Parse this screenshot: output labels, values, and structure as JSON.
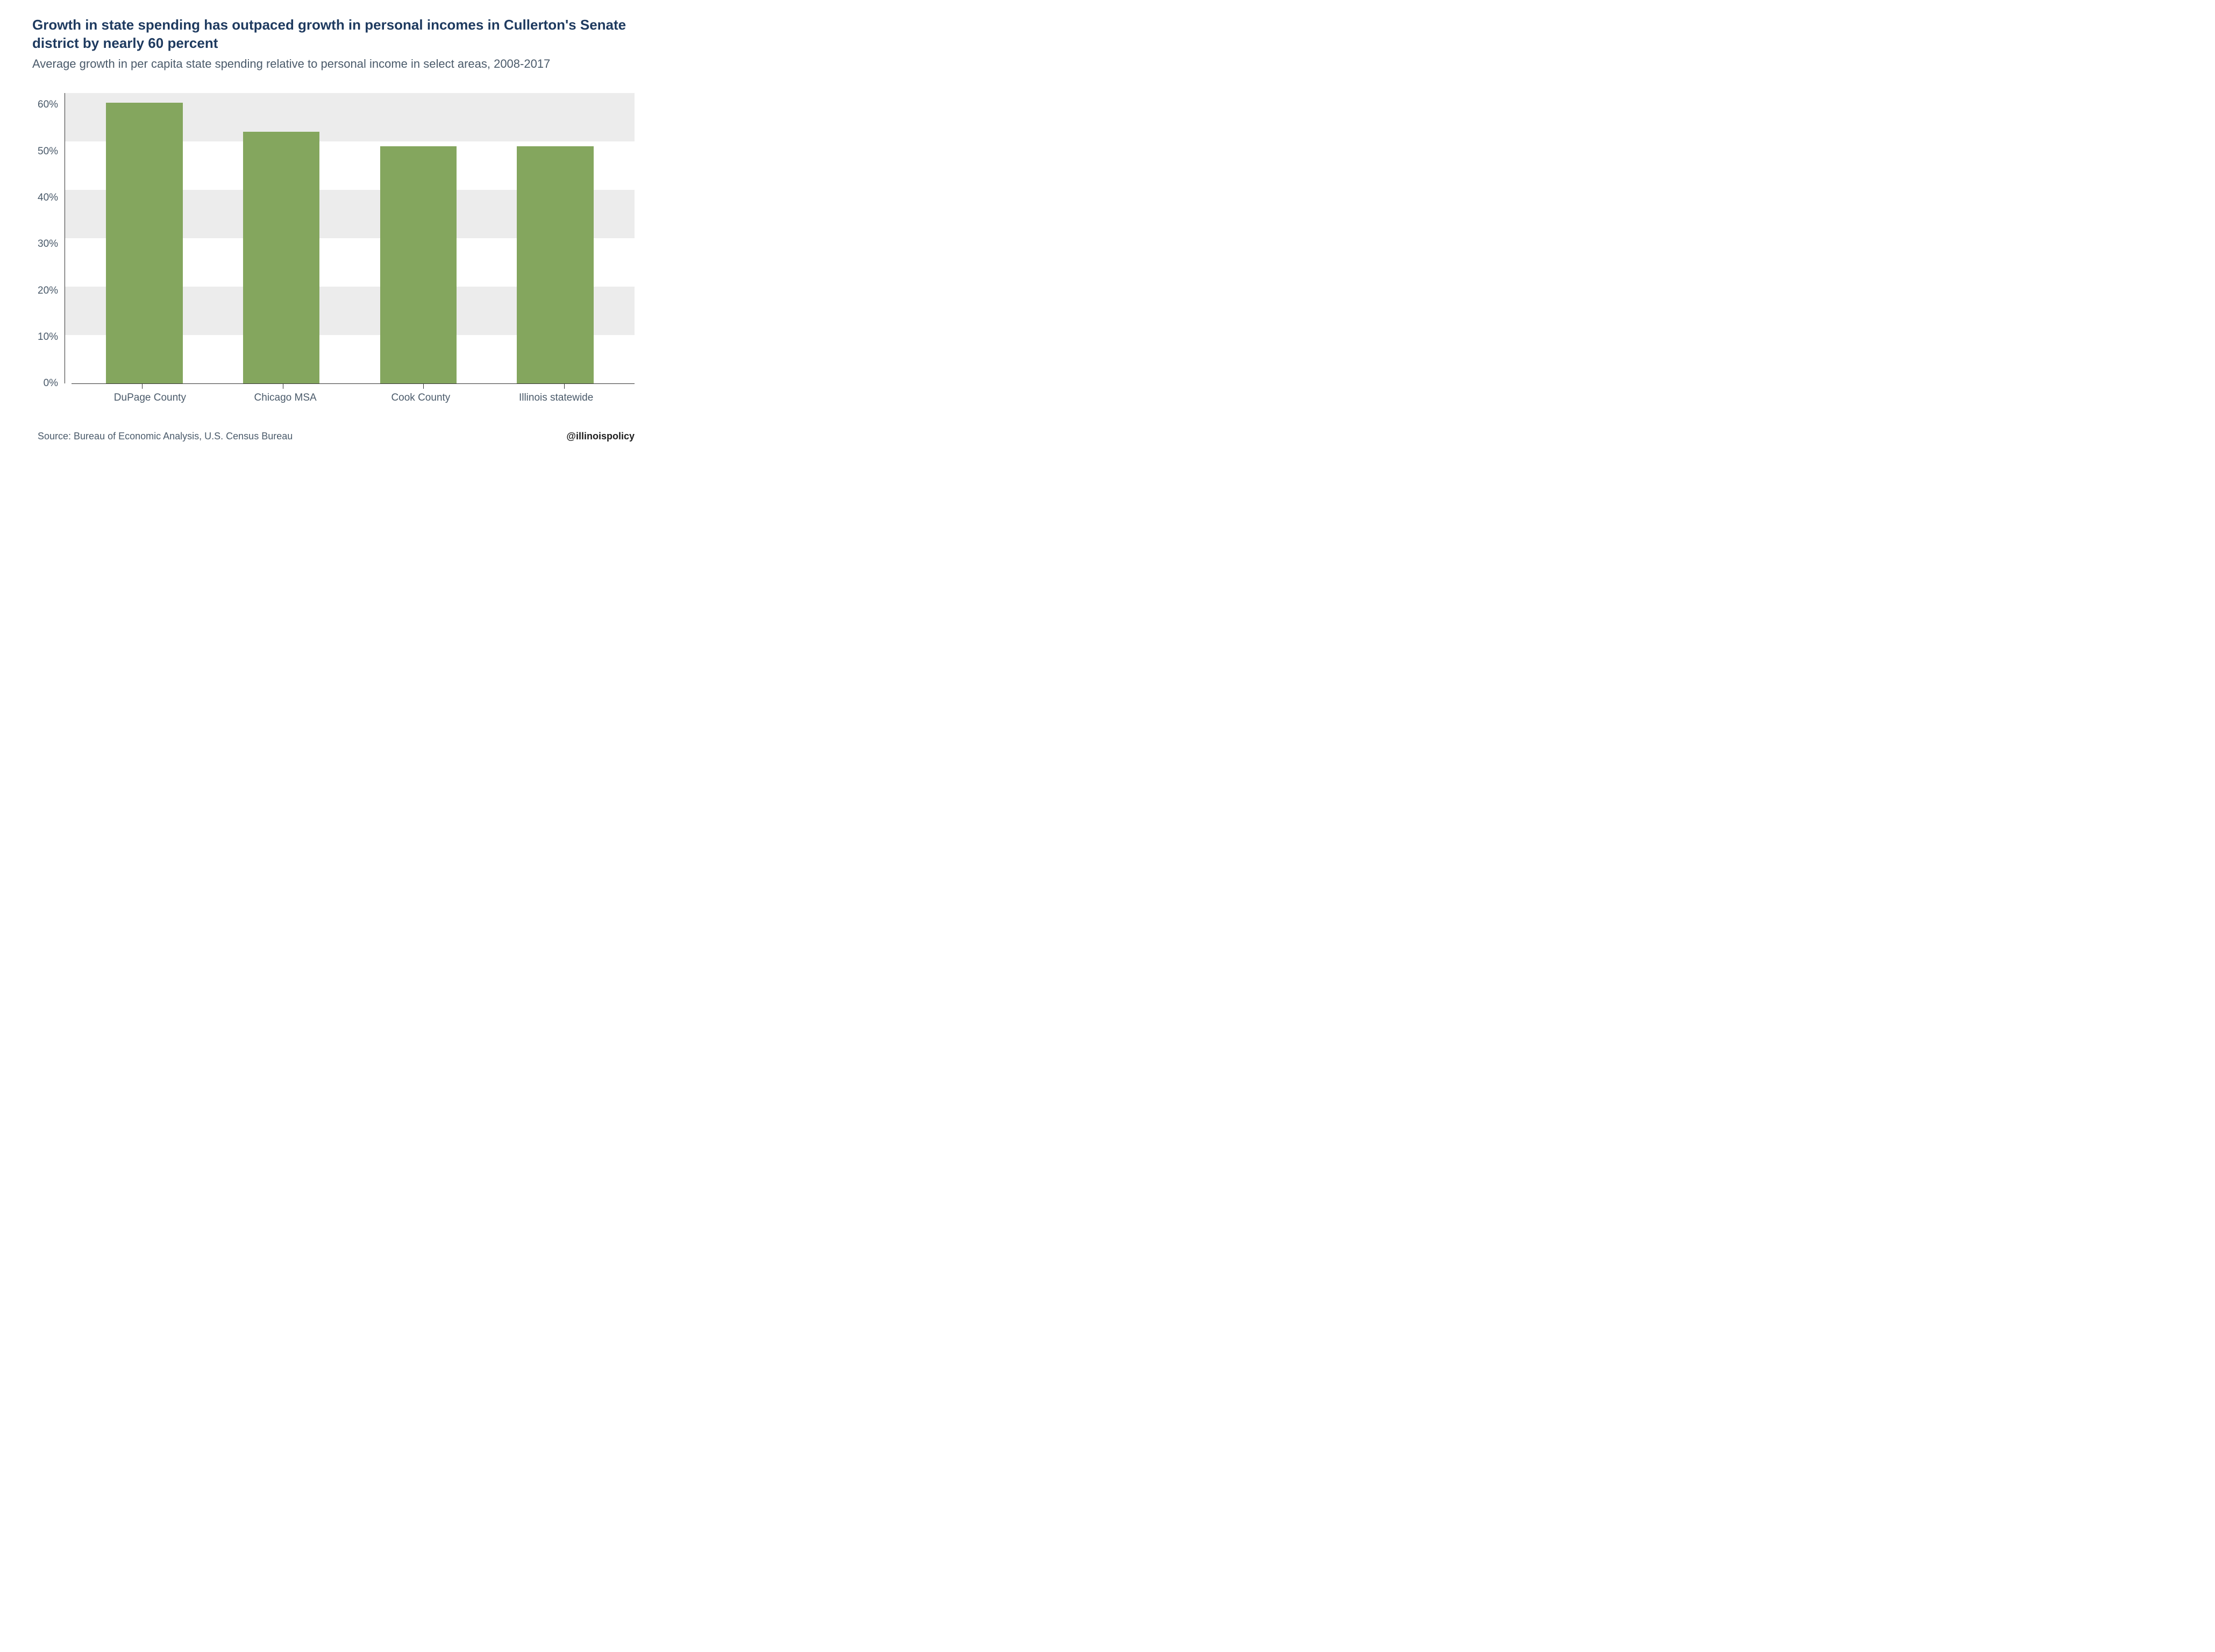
{
  "title": "Growth in state spending has outpaced growth in personal incomes in Cullerton's Senate district by nearly 60 percent",
  "subtitle": "Average growth in per capita state spending relative to personal income in select areas, 2008-2017",
  "source": "Source:  Bureau of Economic Analysis, U.S. Census Bureau",
  "attribution": "@illinoispolicy",
  "chart": {
    "type": "bar",
    "categories": [
      "DuPage County",
      "Chicago MSA",
      "Cook County",
      "Illinois statewide"
    ],
    "values": [
      58,
      52,
      49,
      49
    ],
    "bar_color": "#84a65e",
    "ylim": [
      0,
      60
    ],
    "ytick_step": 10,
    "ytick_labels": [
      "60%",
      "50%",
      "40%",
      "30%",
      "20%",
      "10%",
      "0%"
    ],
    "band_color": "#ececec",
    "background_color": "#ffffff",
    "axis_color": "#333333",
    "title_color": "#1e3a5f",
    "text_color": "#4a5a6a",
    "title_fontsize": 26,
    "subtitle_fontsize": 22,
    "label_fontsize": 19,
    "bar_width_ratio": 0.56
  }
}
